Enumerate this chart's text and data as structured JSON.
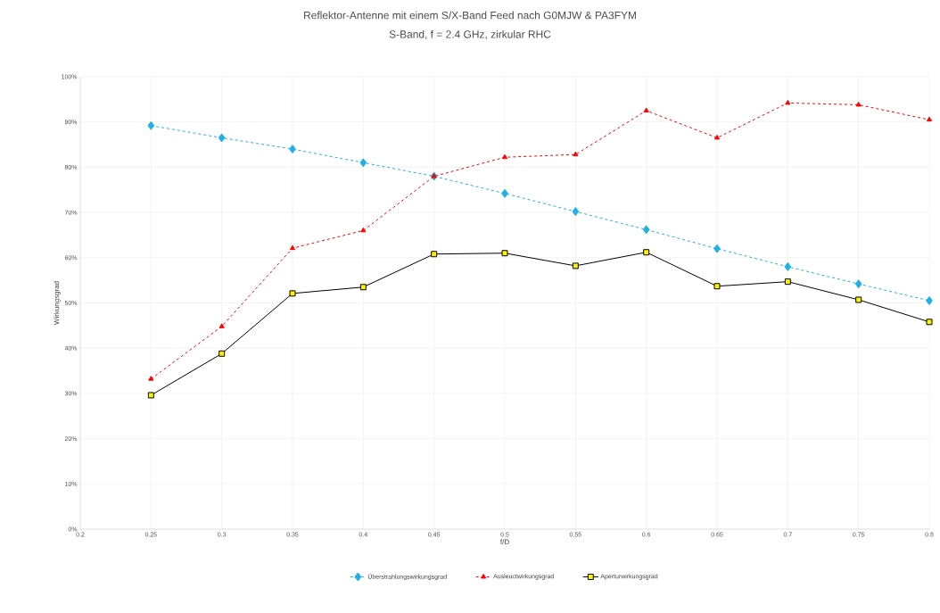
{
  "chart_data": {
    "type": "line",
    "title": "Reflektor-Antenne mit einem S/X-Band Feed nach G0MJW & PA3FYM",
    "subtitle": "S-Band, f = 2.4 GHz, zirkular RHC",
    "xlabel": "f/D",
    "ylabel": "Wirkungsgrad",
    "x": [
      0.25,
      0.3,
      0.35,
      0.4,
      0.45,
      0.5,
      0.55,
      0.6,
      0.65,
      0.7,
      0.75,
      0.8
    ],
    "series": [
      {
        "name": "Überstrahlungswirkungsgrad",
        "color": "#1fb0e6",
        "marker": "diamond",
        "line_style": "dashed",
        "values": [
          89.2,
          86.5,
          84,
          81,
          78,
          74.2,
          70.2,
          66.2,
          62,
          58,
          54.2,
          50.5
        ]
      },
      {
        "name": "Ausleuctwirkungsgrad",
        "color": "#ff0000",
        "marker": "triangle",
        "line_style": "dashed",
        "values": [
          33.2,
          44.8,
          62.1,
          66,
          78,
          82.2,
          82.8,
          92.5,
          86.5,
          94.2,
          93.8,
          90.5
        ]
      },
      {
        "name": "Aperturwirkungsgrad",
        "color": "#000000",
        "marker": "square",
        "line_style": "solid",
        "values": [
          29.6,
          38.8,
          52.1,
          53.5,
          60.8,
          61,
          58.2,
          61.2,
          53.7,
          54.7,
          50.7,
          45.8
        ]
      }
    ],
    "xlim": [
      0.2,
      0.8
    ],
    "xticks": [
      0.2,
      0.25,
      0.3,
      0.35,
      0.4,
      0.45,
      0.5,
      0.55,
      0.6,
      0.65,
      0.7,
      0.75,
      0.8
    ],
    "ylim": [
      0,
      100
    ],
    "yticks": [
      {
        "value": 0,
        "label": "0%"
      },
      {
        "value": 10,
        "label": "10%"
      },
      {
        "value": 20,
        "label": "20%"
      },
      {
        "value": 30,
        "label": "30%"
      },
      {
        "value": 40,
        "label": "40%"
      },
      {
        "value": 50,
        "label": "50%"
      },
      {
        "value": 60,
        "label": "60%"
      },
      {
        "value": 70,
        "label": "70%"
      },
      {
        "value": 80,
        "label": "80%"
      },
      {
        "value": 90,
        "label": "90%"
      },
      {
        "value": 100,
        "label": "100%"
      }
    ],
    "grid": true,
    "legend": "bottom"
  }
}
